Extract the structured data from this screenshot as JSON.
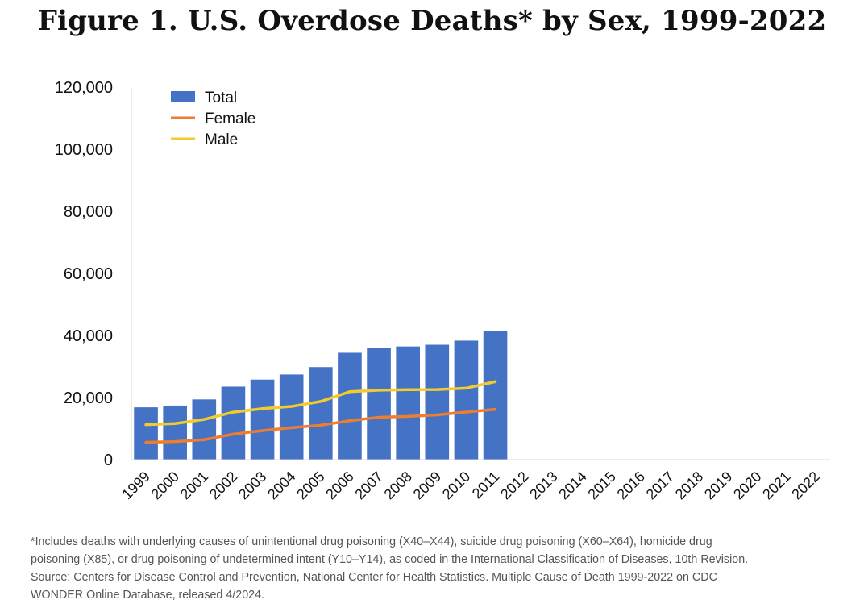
{
  "chart_data": {
    "type": "bar",
    "title": "Figure 1. U.S. Overdose Deaths* by Sex, 1999-2022",
    "categories": [
      "1999",
      "2000",
      "2001",
      "2002",
      "2003",
      "2004",
      "2005",
      "2006",
      "2007",
      "2008",
      "2009",
      "2010",
      "2011",
      "2012",
      "2013",
      "2014",
      "2015",
      "2016",
      "2017",
      "2018",
      "2019",
      "2020",
      "2021",
      "2022"
    ],
    "ylim": [
      0,
      120000
    ],
    "yticks": [
      "0",
      "20,000",
      "40,000",
      "60,000",
      "80,000",
      "100,000",
      "120,000"
    ],
    "ytick_values": [
      0,
      20000,
      40000,
      60000,
      80000,
      100000,
      120000
    ],
    "grid": false,
    "legend_position": "top-left",
    "series": [
      {
        "name": "Total",
        "kind": "bar",
        "color": "#4472C4",
        "values": [
          16849,
          17415,
          19394,
          23518,
          25785,
          27424,
          29813,
          34425,
          36010,
          36450,
          37004,
          38329,
          41340,
          null,
          null,
          null,
          null,
          null,
          null,
          null,
          null,
          null,
          null,
          null
        ]
      },
      {
        "name": "Female",
        "kind": "line",
        "color": "#ED7D31",
        "values": [
          5591,
          5800,
          6435,
          8221,
          9362,
          10296,
          11089,
          12537,
          13651,
          13925,
          14429,
          15323,
          16212,
          null,
          null,
          null,
          null,
          null,
          null,
          null,
          null,
          null,
          null,
          null
        ]
      },
      {
        "name": "Male",
        "kind": "line",
        "color": "#F2CB2E",
        "values": [
          11258,
          11615,
          12959,
          15297,
          16423,
          17128,
          18724,
          21888,
          22359,
          22525,
          22575,
          23006,
          25128,
          null,
          null,
          null,
          null,
          null,
          null,
          null,
          null,
          null,
          null,
          null
        ]
      }
    ]
  },
  "footnote": {
    "lines": [
      "*Includes deaths with underlying causes of unintentional drug poisoning (X40–X44), suicide drug poisoning (X60–X64), homicide drug",
      "poisoning (X85), or drug poisoning of undetermined intent (Y10–Y14), as coded in the International Classification of Diseases, 10th Revision.",
      "Source: Centers for Disease Control and Prevention, National Center for Health Statistics. Multiple Cause of Death 1999-2022 on CDC",
      "WONDER Online Database, released 4/2024."
    ]
  }
}
